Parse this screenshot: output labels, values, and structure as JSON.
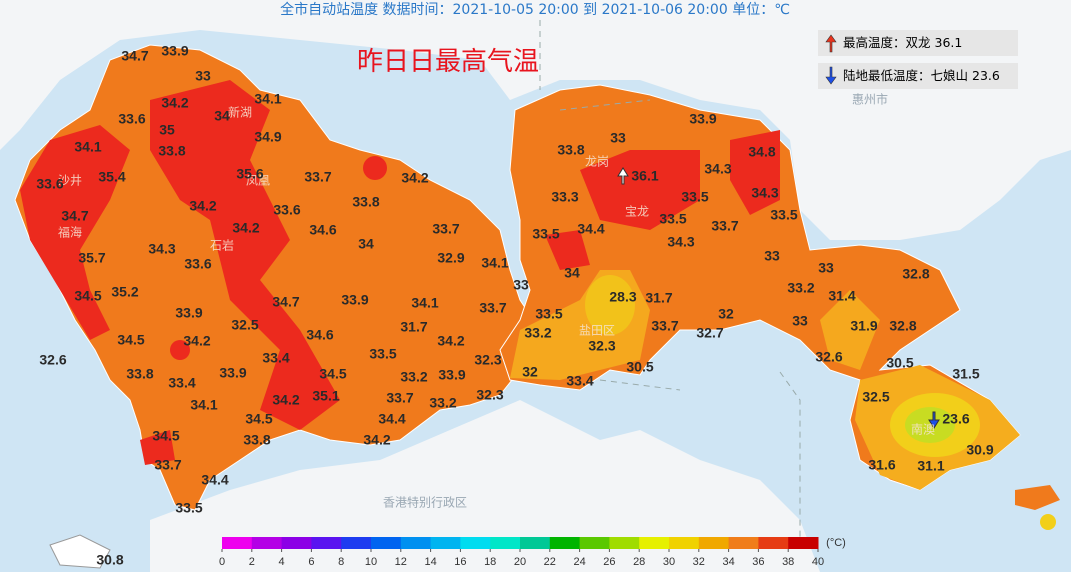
{
  "header": "全市自动站温度  数据时间：2021-10-05 20:00 到 2021-10-06 20:00  单位：℃",
  "title": "昨日日最高气温",
  "legend": {
    "max": {
      "label": "最高温度：双龙",
      "value": 36.1
    },
    "min": {
      "label": "陆地最低温度：七娘山",
      "value": 23.6
    }
  },
  "stations": [
    34.7,
    33.9,
    33,
    34.2,
    34.1,
    33.6,
    35,
    34,
    34.9,
    34.1,
    33.8,
    35.4,
    33.6,
    35.6,
    33.7,
    34.2,
    34.2,
    33.6,
    33.8,
    34.7,
    34.2,
    34.6,
    34.3,
    34,
    33.7,
    35.7,
    33.6,
    32.9,
    34.1,
    35.2,
    34.5,
    34.7,
    33.9,
    34.1,
    33.7,
    33.9,
    32.5,
    34.6,
    31.7,
    34.5,
    34.2,
    34.2,
    32.6,
    33.4,
    33.5,
    32.3,
    33.8,
    33.4,
    33.9,
    34.5,
    33.2,
    33.9,
    34.1,
    34.2,
    35.1,
    33.7,
    32.3,
    33.2,
    34.5,
    34.4,
    34.5,
    33.8,
    34.2,
    33.7,
    34.4,
    33.5,
    30.8,
    33.9,
    33,
    33.8,
    34.8,
    36.1,
    34.3,
    33.3,
    33.5,
    34.3,
    33.5,
    33.7,
    33.5,
    34.4,
    33.5,
    34.3,
    33,
    34,
    33,
    32.8,
    33,
    28.3,
    31.7,
    33.2,
    31.4,
    33.5,
    32,
    33,
    33.7,
    32.7,
    31.9,
    32.8,
    33.2,
    32.3,
    32.6,
    30.5,
    32,
    30.5,
    33.4,
    31.5,
    32.5,
    23.6,
    30.9,
    31.6,
    31.1
  ],
  "places": [
    "新湖",
    "沙井",
    "福海",
    "石岩",
    "凤凰",
    "宝龙",
    "龙岗",
    "盐田区",
    "南澳",
    "惠州市",
    "香港特别行政区"
  ],
  "colorbar": {
    "unit": "(°C)",
    "ticks": [
      0,
      2,
      4,
      6,
      8,
      10,
      12,
      14,
      16,
      18,
      20,
      22,
      24,
      26,
      28,
      30,
      32,
      34,
      36,
      38,
      40
    ],
    "colors": [
      "#ee00ee",
      "#b400e6",
      "#8c00e6",
      "#5a14f0",
      "#1e3cf0",
      "#0064f0",
      "#0090f0",
      "#00b4f0",
      "#00dcf0",
      "#00e6c8",
      "#00c896",
      "#00b400",
      "#5ac800",
      "#a0dc00",
      "#e6f000",
      "#f0d200",
      "#f0a800",
      "#f07d1a",
      "#e63c14",
      "#c80000"
    ]
  }
}
